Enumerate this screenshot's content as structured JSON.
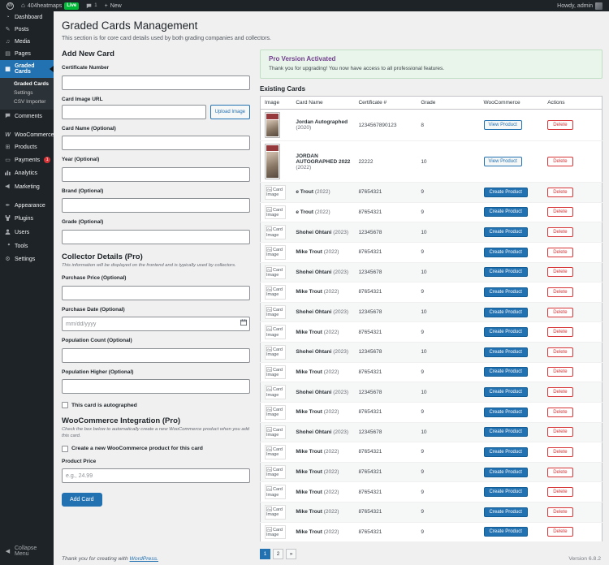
{
  "admin_bar": {
    "site_name": "404heatmaps",
    "live_badge": "Live",
    "comment_count": "1",
    "new_label": "New",
    "howdy": "Howdy, admin"
  },
  "sidebar": {
    "items": [
      {
        "label": "Dashboard",
        "icon": "dashboard-icon"
      },
      {
        "label": "Posts",
        "icon": "posts-icon"
      },
      {
        "label": "Media",
        "icon": "media-icon"
      },
      {
        "label": "Pages",
        "icon": "pages-icon"
      },
      {
        "label": "Graded Cards",
        "icon": "graded-cards-icon",
        "active": true,
        "submenu": [
          "Graded Cards",
          "Settings",
          "CSV Importer"
        ]
      },
      {
        "label": "Comments",
        "icon": "comments-icon"
      },
      {
        "label": "WooCommerce",
        "icon": "woocommerce-icon",
        "gap_before": true
      },
      {
        "label": "Products",
        "icon": "products-icon"
      },
      {
        "label": "Payments",
        "icon": "payments-icon",
        "badge": "1"
      },
      {
        "label": "Analytics",
        "icon": "analytics-icon"
      },
      {
        "label": "Marketing",
        "icon": "marketing-icon"
      },
      {
        "label": "Appearance",
        "icon": "appearance-icon",
        "gap_before": true
      },
      {
        "label": "Plugins",
        "icon": "plugins-icon"
      },
      {
        "label": "Users",
        "icon": "users-icon"
      },
      {
        "label": "Tools",
        "icon": "tools-icon"
      },
      {
        "label": "Settings",
        "icon": "settings-icon"
      }
    ],
    "collapse_label": "Collapse Menu"
  },
  "page": {
    "title": "Graded Cards Management",
    "subtitle": "This section is for core card details used by both grading companies and collectors."
  },
  "form": {
    "heading": "Add New Card",
    "certificate_number_label": "Certificate Number",
    "card_image_url_label": "Card Image URL",
    "upload_image_label": "Upload Image",
    "card_name_label": "Card Name (Optional)",
    "year_label": "Year (Optional)",
    "brand_label": "Brand (Optional)",
    "grade_label": "Grade (Optional)",
    "collector": {
      "heading": "Collector Details (Pro)",
      "note": "This information will be displayed on the frontend and is typically used by collectors.",
      "purchase_price_label": "Purchase Price (Optional)",
      "purchase_date_label": "Purchase Date (Optional)",
      "purchase_date_placeholder": "mm/dd/yyyy",
      "population_count_label": "Population Count (Optional)",
      "population_higher_label": "Population Higher (Optional)",
      "autograph_checkbox_label": "This card is autographed"
    },
    "woocommerce": {
      "heading": "WooCommerce Integration (Pro)",
      "note": "Check the box below to automatically create a new WooCommerce product when you add this card.",
      "checkbox_label": "Create a new WooCommerce product for this card",
      "product_price_label": "Product Price",
      "product_price_placeholder": "e.g., 24.99"
    },
    "submit_label": "Add Card"
  },
  "notice": {
    "title": "Pro Version Activated",
    "message": "Thank you for upgrading! You now have access to all professional features."
  },
  "cards": {
    "heading": "Existing Cards",
    "columns": [
      "Image",
      "Card Name",
      "Certificate #",
      "Grade",
      "WooCommerce",
      "Actions"
    ],
    "broken_image_alt": "Card Image",
    "view_product_label": "View Product",
    "create_product_label": "Create Product",
    "delete_label": "Delete",
    "rows": [
      {
        "name": "Jordan Autographed",
        "year": "(2020)",
        "cert": "1234567890123",
        "grade": "8",
        "woo": "view",
        "thumb": "photo"
      },
      {
        "name": "JORDAN AUTOGRAPHED 2022",
        "year": "(2022)",
        "cert": "22222",
        "grade": "10",
        "woo": "view",
        "thumb": "photo-tall"
      },
      {
        "name": "e Trout",
        "year": "(2022)",
        "cert": "87654321",
        "grade": "9",
        "woo": "create",
        "thumb": "broken"
      },
      {
        "name": "e Trout",
        "year": "(2022)",
        "cert": "87654321",
        "grade": "9",
        "woo": "create",
        "thumb": "broken"
      },
      {
        "name": "Shohei Ohtani",
        "year": "(2023)",
        "cert": "12345678",
        "grade": "10",
        "woo": "create",
        "thumb": "broken"
      },
      {
        "name": "Mike Trout",
        "year": "(2022)",
        "cert": "87654321",
        "grade": "9",
        "woo": "create",
        "thumb": "broken"
      },
      {
        "name": "Shohei Ohtani",
        "year": "(2023)",
        "cert": "12345678",
        "grade": "10",
        "woo": "create",
        "thumb": "broken"
      },
      {
        "name": "Mike Trout",
        "year": "(2022)",
        "cert": "87654321",
        "grade": "9",
        "woo": "create",
        "thumb": "broken"
      },
      {
        "name": "Shohei Ohtani",
        "year": "(2023)",
        "cert": "12345678",
        "grade": "10",
        "woo": "create",
        "thumb": "broken"
      },
      {
        "name": "Mike Trout",
        "year": "(2022)",
        "cert": "87654321",
        "grade": "9",
        "woo": "create",
        "thumb": "broken"
      },
      {
        "name": "Shohei Ohtani",
        "year": "(2023)",
        "cert": "12345678",
        "grade": "10",
        "woo": "create",
        "thumb": "broken"
      },
      {
        "name": "Mike Trout",
        "year": "(2022)",
        "cert": "87654321",
        "grade": "9",
        "woo": "create",
        "thumb": "broken"
      },
      {
        "name": "Shohei Ohtani",
        "year": "(2023)",
        "cert": "12345678",
        "grade": "10",
        "woo": "create",
        "thumb": "broken"
      },
      {
        "name": "Mike Trout",
        "year": "(2022)",
        "cert": "87654321",
        "grade": "9",
        "woo": "create",
        "thumb": "broken"
      },
      {
        "name": "Shohei Ohtani",
        "year": "(2023)",
        "cert": "12345678",
        "grade": "10",
        "woo": "create",
        "thumb": "broken"
      },
      {
        "name": "Mike Trout",
        "year": "(2022)",
        "cert": "87654321",
        "grade": "9",
        "woo": "create",
        "thumb": "broken"
      },
      {
        "name": "Mike Trout",
        "year": "(2022)",
        "cert": "87654321",
        "grade": "9",
        "woo": "create",
        "thumb": "broken"
      },
      {
        "name": "Mike Trout",
        "year": "(2022)",
        "cert": "87654321",
        "grade": "9",
        "woo": "create",
        "thumb": "broken"
      },
      {
        "name": "Mike Trout",
        "year": "(2022)",
        "cert": "87654321",
        "grade": "9",
        "woo": "create",
        "thumb": "broken"
      },
      {
        "name": "Mike Trout",
        "year": "(2022)",
        "cert": "87654321",
        "grade": "9",
        "woo": "create",
        "thumb": "broken"
      }
    ],
    "pagination": [
      {
        "label": "1",
        "active": true
      },
      {
        "label": "2",
        "active": false
      },
      {
        "label": "»",
        "active": false
      }
    ]
  },
  "footer": {
    "thanks_prefix": "Thank you for creating with",
    "wordpress_link": "WordPress.",
    "version": "Version 6.8.2"
  },
  "colors": {
    "accent_blue": "#2271b1",
    "danger_red": "#d63638",
    "live_green": "#00ba37",
    "notice_bg": "#e9f5ea",
    "notice_title": "#713f8e",
    "admin_dark": "#1d2327"
  }
}
